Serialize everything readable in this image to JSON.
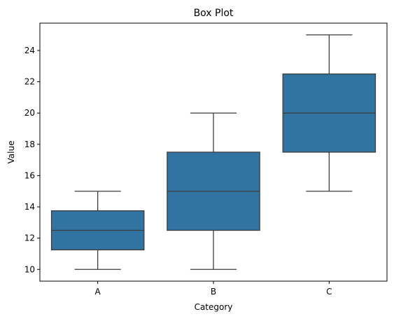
{
  "chart_data": {
    "type": "box",
    "title": "Box Plot",
    "xlabel": "Category",
    "ylabel": "Value",
    "categories": [
      "A",
      "B",
      "C"
    ],
    "boxes": [
      {
        "category": "A",
        "min": 10,
        "q1": 11.25,
        "median": 12.5,
        "q3": 13.75,
        "max": 15
      },
      {
        "category": "B",
        "min": 10,
        "q1": 12.5,
        "median": 15,
        "q3": 17.5,
        "max": 20
      },
      {
        "category": "C",
        "min": 15,
        "q1": 17.5,
        "median": 20,
        "q3": 22.5,
        "max": 25
      }
    ],
    "ylim": [
      9.25,
      25.75
    ],
    "yticks": [
      10,
      12,
      14,
      16,
      18,
      20,
      22,
      24
    ],
    "grid": false,
    "box_color": "#3274a1",
    "line_color": "#3d3d3d"
  }
}
